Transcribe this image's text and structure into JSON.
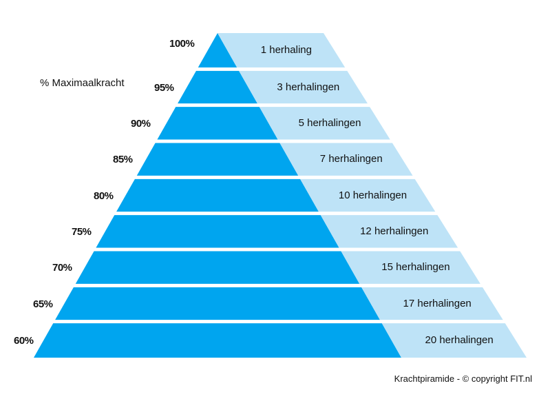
{
  "title": "",
  "axis_label": "% Maximaalkracht",
  "footer": "Krachtpiramide - © copyright FIT.nl",
  "colors": {
    "dark": "#00a5ef",
    "light": "#bee3f7",
    "background": "#ffffff"
  },
  "levels": [
    {
      "percent": "100%",
      "reps": "1 herhaling"
    },
    {
      "percent": "95%",
      "reps": "3 herhalingen"
    },
    {
      "percent": "90%",
      "reps": "5 herhalingen"
    },
    {
      "percent": "85%",
      "reps": "7 herhalingen"
    },
    {
      "percent": "80%",
      "reps": "10 herhalingen"
    },
    {
      "percent": "75%",
      "reps": "12 herhalingen"
    },
    {
      "percent": "70%",
      "reps": "15 herhalingen"
    },
    {
      "percent": "65%",
      "reps": "17 herhalingen"
    },
    {
      "percent": "60%",
      "reps": "20 herhalingen"
    }
  ]
}
